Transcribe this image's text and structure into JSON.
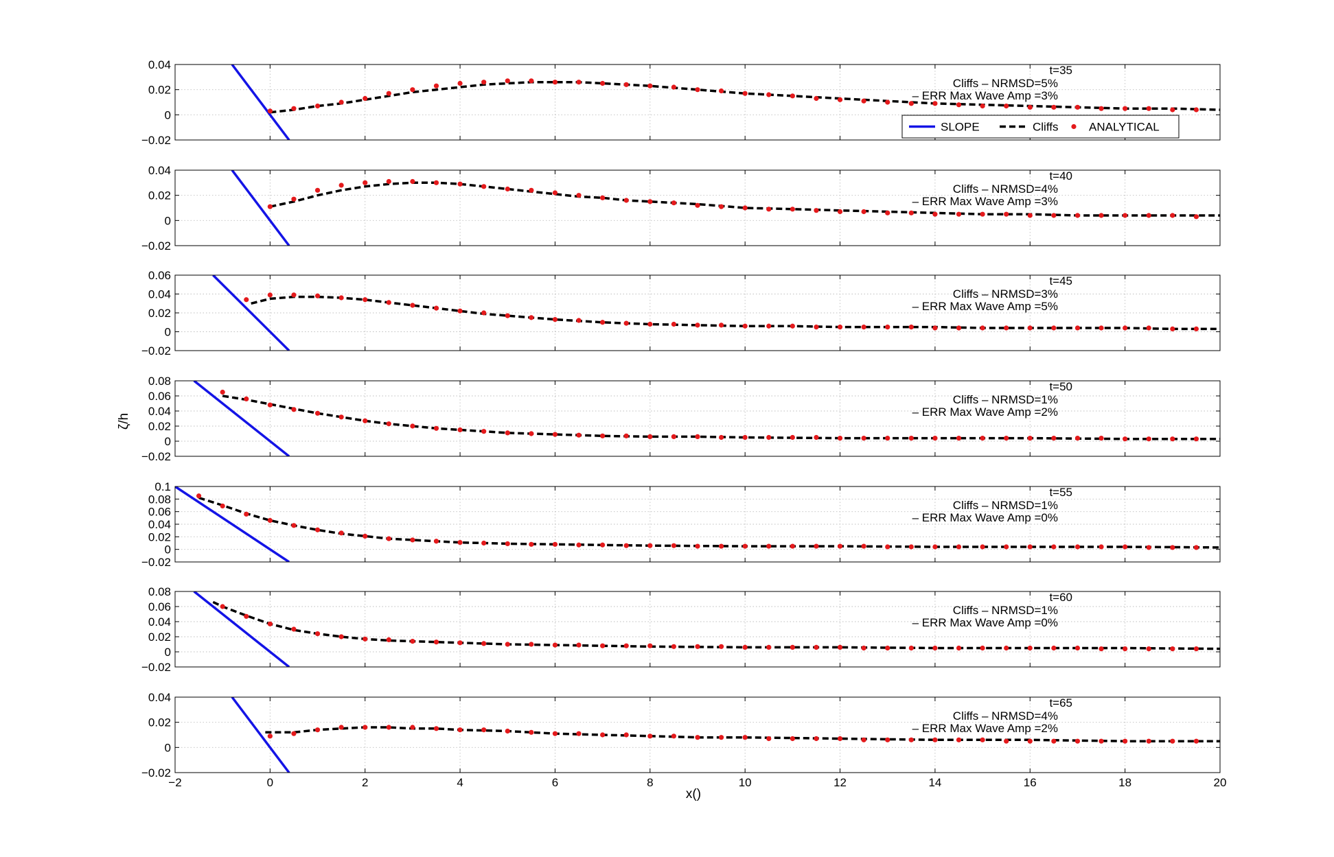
{
  "chart_data": {
    "type": "line",
    "ylabel": "ζ/h",
    "xlabel": "x()",
    "xlim": [
      -2,
      20
    ],
    "xticks": [
      -2,
      0,
      2,
      4,
      6,
      8,
      10,
      12,
      14,
      16,
      18,
      20
    ],
    "grid": true,
    "legend": {
      "placement": "bottom-right of first panel",
      "entries": [
        "SLOPE",
        "Cliffs",
        "ANALYTICAL"
      ]
    },
    "series_styles": {
      "SLOPE": "#1414e6",
      "Cliffs": "#000000",
      "ANALYTICAL": "#e41a1c"
    },
    "panels": [
      {
        "time_label": "t=35",
        "nrmsd_label": "Cliffs – NRMSD=5%",
        "err_label": "– ERR Max Wave Amp =3%",
        "ylim": [
          -0.02,
          0.04
        ],
        "yticks": [
          -0.02,
          0,
          0.02,
          0.04
        ],
        "ytick_labels": [
          "−0.02",
          "0",
          "0.02",
          "0.04"
        ],
        "slope": [
          [
            -0.8,
            0.04
          ],
          [
            0.4,
            -0.02
          ]
        ],
        "cliffs_x": [
          0,
          0.5,
          1,
          1.5,
          2,
          2.5,
          3,
          3.5,
          4,
          4.5,
          5,
          5.5,
          6,
          6.5,
          7,
          7.5,
          8,
          9,
          10,
          11,
          12,
          13,
          14,
          15,
          16,
          17,
          18,
          19,
          20
        ],
        "cliffs_y": [
          0.002,
          0.004,
          0.007,
          0.009,
          0.012,
          0.015,
          0.018,
          0.02,
          0.022,
          0.024,
          0.025,
          0.026,
          0.026,
          0.026,
          0.025,
          0.024,
          0.023,
          0.02,
          0.017,
          0.015,
          0.013,
          0.011,
          0.009,
          0.008,
          0.007,
          0.006,
          0.005,
          0.005,
          0.004
        ],
        "analytical_x": [
          0,
          0.5,
          1,
          1.5,
          2,
          2.5,
          3,
          3.5,
          4,
          4.5,
          5,
          5.5,
          6,
          6.5,
          7,
          7.5,
          8,
          8.5,
          9,
          9.5,
          10,
          10.5,
          11,
          11.5,
          12,
          12.5,
          13,
          13.5,
          14,
          14.5,
          15,
          15.5,
          16,
          16.5,
          17,
          17.5,
          18,
          18.5,
          19,
          19.5
        ],
        "analytical_y": [
          0.003,
          0.005,
          0.007,
          0.01,
          0.013,
          0.017,
          0.02,
          0.023,
          0.025,
          0.026,
          0.027,
          0.027,
          0.026,
          0.026,
          0.025,
          0.024,
          0.023,
          0.022,
          0.02,
          0.019,
          0.017,
          0.016,
          0.015,
          0.013,
          0.012,
          0.011,
          0.01,
          0.009,
          0.009,
          0.008,
          0.007,
          0.007,
          0.006,
          0.006,
          0.006,
          0.005,
          0.005,
          0.005,
          0.004,
          0.004
        ]
      },
      {
        "time_label": "t=40",
        "nrmsd_label": "Cliffs – NRMSD=4%",
        "err_label": "– ERR Max Wave Amp =3%",
        "ylim": [
          -0.02,
          0.04
        ],
        "yticks": [
          -0.02,
          0,
          0.02,
          0.04
        ],
        "ytick_labels": [
          "−0.02",
          "0",
          "0.02",
          "0.04"
        ],
        "slope": [
          [
            -0.8,
            0.04
          ],
          [
            0.4,
            -0.02
          ]
        ],
        "cliffs_x": [
          0,
          0.5,
          1,
          1.5,
          2,
          2.5,
          3,
          3.5,
          4,
          4.5,
          5,
          5.5,
          6,
          6.5,
          7,
          7.5,
          8,
          9,
          10,
          11,
          12,
          13,
          14,
          15,
          16,
          17,
          18,
          19,
          20
        ],
        "cliffs_y": [
          0.011,
          0.015,
          0.02,
          0.024,
          0.027,
          0.029,
          0.03,
          0.03,
          0.029,
          0.027,
          0.025,
          0.023,
          0.021,
          0.019,
          0.018,
          0.016,
          0.015,
          0.013,
          0.01,
          0.009,
          0.008,
          0.007,
          0.006,
          0.005,
          0.005,
          0.004,
          0.004,
          0.004,
          0.004
        ],
        "analytical_x": [
          0,
          0.5,
          1,
          1.5,
          2,
          2.5,
          3,
          3.5,
          4,
          4.5,
          5,
          5.5,
          6,
          6.5,
          7,
          7.5,
          8,
          8.5,
          9,
          9.5,
          10,
          10.5,
          11,
          11.5,
          12,
          12.5,
          13,
          13.5,
          14,
          14.5,
          15,
          15.5,
          16,
          16.5,
          17,
          17.5,
          18,
          18.5,
          19,
          19.5
        ],
        "analytical_y": [
          0.011,
          0.017,
          0.024,
          0.028,
          0.03,
          0.031,
          0.031,
          0.03,
          0.029,
          0.027,
          0.025,
          0.024,
          0.022,
          0.02,
          0.018,
          0.016,
          0.015,
          0.014,
          0.012,
          0.011,
          0.01,
          0.009,
          0.009,
          0.008,
          0.007,
          0.007,
          0.006,
          0.006,
          0.005,
          0.005,
          0.005,
          0.005,
          0.004,
          0.004,
          0.004,
          0.004,
          0.004,
          0.004,
          0.004,
          0.003
        ]
      },
      {
        "time_label": "t=45",
        "nrmsd_label": "Cliffs – NRMSD=3%",
        "err_label": "– ERR Max Wave Amp =5%",
        "ylim": [
          -0.02,
          0.06
        ],
        "yticks": [
          -0.02,
          0,
          0.02,
          0.04,
          0.06
        ],
        "ytick_labels": [
          "−0.02",
          "0",
          "0.02",
          "0.04",
          "0.06"
        ],
        "slope": [
          [
            -1.2,
            0.06
          ],
          [
            0.4,
            -0.02
          ]
        ],
        "cliffs_x": [
          -0.4,
          0,
          0.5,
          1,
          1.5,
          2,
          2.5,
          3,
          3.5,
          4,
          4.5,
          5,
          6,
          7,
          8,
          9,
          10,
          11,
          12,
          13,
          14,
          15,
          16,
          17,
          18,
          19,
          20
        ],
        "cliffs_y": [
          0.03,
          0.035,
          0.037,
          0.037,
          0.036,
          0.034,
          0.031,
          0.028,
          0.025,
          0.022,
          0.019,
          0.017,
          0.013,
          0.01,
          0.008,
          0.007,
          0.006,
          0.006,
          0.005,
          0.005,
          0.005,
          0.004,
          0.004,
          0.004,
          0.004,
          0.003,
          0.003
        ],
        "analytical_x": [
          -0.5,
          0,
          0.5,
          1,
          1.5,
          2,
          2.5,
          3,
          3.5,
          4,
          4.5,
          5,
          5.5,
          6,
          6.5,
          7,
          7.5,
          8,
          8.5,
          9,
          9.5,
          10,
          10.5,
          11,
          11.5,
          12,
          12.5,
          13,
          13.5,
          14,
          14.5,
          15,
          15.5,
          16,
          16.5,
          17,
          17.5,
          18,
          18.5,
          19,
          19.5
        ],
        "analytical_y": [
          0.034,
          0.039,
          0.039,
          0.038,
          0.036,
          0.034,
          0.031,
          0.028,
          0.025,
          0.022,
          0.02,
          0.017,
          0.015,
          0.013,
          0.012,
          0.01,
          0.009,
          0.008,
          0.008,
          0.007,
          0.007,
          0.006,
          0.006,
          0.006,
          0.005,
          0.005,
          0.005,
          0.005,
          0.005,
          0.004,
          0.004,
          0.004,
          0.004,
          0.004,
          0.004,
          0.004,
          0.004,
          0.004,
          0.004,
          0.003,
          0.003
        ]
      },
      {
        "time_label": "t=50",
        "nrmsd_label": "Cliffs – NRMSD=1%",
        "err_label": "– ERR Max Wave Amp =2%",
        "ylim": [
          -0.02,
          0.08
        ],
        "yticks": [
          -0.02,
          0,
          0.02,
          0.04,
          0.06,
          0.08
        ],
        "ytick_labels": [
          "−0.02",
          "0",
          "0.02",
          "0.04",
          "0.06",
          "0.08"
        ],
        "slope": [
          [
            -1.6,
            0.08
          ],
          [
            0.4,
            -0.02
          ]
        ],
        "cliffs_x": [
          -1,
          -0.5,
          0,
          0.5,
          1,
          1.5,
          2,
          2.5,
          3,
          3.5,
          4,
          5,
          6,
          7,
          8,
          9,
          10,
          12,
          14,
          16,
          18,
          20
        ],
        "cliffs_y": [
          0.06,
          0.055,
          0.049,
          0.043,
          0.037,
          0.032,
          0.027,
          0.023,
          0.02,
          0.017,
          0.015,
          0.011,
          0.009,
          0.007,
          0.006,
          0.006,
          0.005,
          0.004,
          0.004,
          0.004,
          0.003,
          0.003
        ],
        "analytical_x": [
          -1,
          -0.5,
          0,
          0.5,
          1,
          1.5,
          2,
          2.5,
          3,
          3.5,
          4,
          4.5,
          5,
          5.5,
          6,
          6.5,
          7,
          7.5,
          8,
          8.5,
          9,
          9.5,
          10,
          10.5,
          11,
          11.5,
          12,
          12.5,
          13,
          13.5,
          14,
          14.5,
          15,
          15.5,
          16,
          16.5,
          17,
          17.5,
          18,
          18.5,
          19,
          19.5
        ],
        "analytical_y": [
          0.065,
          0.056,
          0.048,
          0.042,
          0.037,
          0.032,
          0.027,
          0.023,
          0.02,
          0.017,
          0.015,
          0.013,
          0.011,
          0.01,
          0.009,
          0.008,
          0.007,
          0.007,
          0.006,
          0.006,
          0.006,
          0.005,
          0.005,
          0.005,
          0.005,
          0.005,
          0.004,
          0.004,
          0.004,
          0.004,
          0.004,
          0.004,
          0.004,
          0.004,
          0.004,
          0.004,
          0.004,
          0.004,
          0.003,
          0.003,
          0.003,
          0.003
        ]
      },
      {
        "time_label": "t=55",
        "nrmsd_label": "Cliffs – NRMSD=1%",
        "err_label": "– ERR Max Wave Amp =0%",
        "ylim": [
          -0.02,
          0.1
        ],
        "yticks": [
          -0.02,
          0,
          0.02,
          0.04,
          0.06,
          0.08,
          0.1
        ],
        "ytick_labels": [
          "−0.02",
          "0",
          "0.02",
          "0.04",
          "0.06",
          "0.08",
          "0.1"
        ],
        "slope": [
          [
            -2,
            0.1
          ],
          [
            0.4,
            -0.02
          ]
        ],
        "cliffs_x": [
          -1.5,
          -1,
          -0.5,
          0,
          0.5,
          1,
          1.5,
          2,
          2.5,
          3,
          3.5,
          4,
          5,
          6,
          7,
          8,
          10,
          12,
          14,
          16,
          18,
          20
        ],
        "cliffs_y": [
          0.082,
          0.07,
          0.057,
          0.046,
          0.038,
          0.031,
          0.025,
          0.021,
          0.017,
          0.015,
          0.013,
          0.011,
          0.009,
          0.008,
          0.007,
          0.006,
          0.005,
          0.005,
          0.004,
          0.004,
          0.004,
          0.003
        ],
        "analytical_x": [
          -1.5,
          -1,
          -0.5,
          0,
          0.5,
          1,
          1.5,
          2,
          2.5,
          3,
          3.5,
          4,
          4.5,
          5,
          5.5,
          6,
          6.5,
          7,
          7.5,
          8,
          8.5,
          9,
          9.5,
          10,
          10.5,
          11,
          11.5,
          12,
          12.5,
          13,
          13.5,
          14,
          14.5,
          15,
          15.5,
          16,
          16.5,
          17,
          17.5,
          18,
          18.5,
          19,
          19.5
        ],
        "analytical_y": [
          0.085,
          0.069,
          0.056,
          0.046,
          0.038,
          0.031,
          0.026,
          0.021,
          0.017,
          0.015,
          0.013,
          0.011,
          0.01,
          0.009,
          0.008,
          0.008,
          0.007,
          0.007,
          0.006,
          0.006,
          0.006,
          0.005,
          0.005,
          0.005,
          0.005,
          0.005,
          0.005,
          0.005,
          0.005,
          0.004,
          0.004,
          0.004,
          0.004,
          0.004,
          0.004,
          0.004,
          0.004,
          0.004,
          0.004,
          0.004,
          0.003,
          0.003,
          0.003
        ]
      },
      {
        "time_label": "t=60",
        "nrmsd_label": "Cliffs – NRMSD=1%",
        "err_label": "– ERR Max Wave Amp =0%",
        "ylim": [
          -0.02,
          0.08
        ],
        "yticks": [
          -0.02,
          0,
          0.02,
          0.04,
          0.06,
          0.08
        ],
        "ytick_labels": [
          "−0.02",
          "0",
          "0.02",
          "0.04",
          "0.06",
          "0.08"
        ],
        "slope": [
          [
            -1.6,
            0.08
          ],
          [
            0.4,
            -0.02
          ]
        ],
        "cliffs_x": [
          -1.2,
          -1,
          -0.5,
          0,
          0.5,
          1,
          1.5,
          2,
          2.5,
          3,
          3.5,
          4,
          5,
          6,
          7,
          8,
          10,
          12,
          14,
          16,
          18,
          20
        ],
        "cliffs_y": [
          0.066,
          0.06,
          0.048,
          0.037,
          0.029,
          0.024,
          0.02,
          0.017,
          0.015,
          0.014,
          0.013,
          0.012,
          0.01,
          0.009,
          0.008,
          0.007,
          0.006,
          0.006,
          0.005,
          0.005,
          0.005,
          0.004
        ],
        "analytical_x": [
          -1,
          -0.5,
          0,
          0.5,
          1,
          1.5,
          2,
          2.5,
          3,
          3.5,
          4,
          4.5,
          5,
          5.5,
          6,
          6.5,
          7,
          7.5,
          8,
          8.5,
          9,
          9.5,
          10,
          10.5,
          11,
          11.5,
          12,
          12.5,
          13,
          13.5,
          14,
          14.5,
          15,
          15.5,
          16,
          16.5,
          17,
          17.5,
          18,
          18.5,
          19,
          19.5
        ],
        "analytical_y": [
          0.06,
          0.047,
          0.037,
          0.03,
          0.024,
          0.02,
          0.017,
          0.016,
          0.014,
          0.013,
          0.012,
          0.011,
          0.01,
          0.01,
          0.009,
          0.009,
          0.008,
          0.008,
          0.008,
          0.007,
          0.007,
          0.007,
          0.006,
          0.006,
          0.006,
          0.006,
          0.006,
          0.005,
          0.005,
          0.005,
          0.005,
          0.005,
          0.005,
          0.005,
          0.005,
          0.005,
          0.005,
          0.004,
          0.004,
          0.004,
          0.004,
          0.004
        ]
      },
      {
        "time_label": "t=65",
        "nrmsd_label": "Cliffs – NRMSD=4%",
        "err_label": "– ERR Max Wave Amp =2%",
        "ylim": [
          -0.02,
          0.04
        ],
        "yticks": [
          -0.02,
          0,
          0.02,
          0.04
        ],
        "ytick_labels": [
          "−0.02",
          "0",
          "0.02",
          "0.04"
        ],
        "slope": [
          [
            -0.8,
            0.04
          ],
          [
            0.4,
            -0.02
          ]
        ],
        "cliffs_x": [
          -0.1,
          0.5,
          1,
          1.5,
          2,
          2.5,
          3,
          3.5,
          4,
          5,
          6,
          7,
          8,
          9,
          10,
          12,
          14,
          16,
          18,
          20
        ],
        "cliffs_y": [
          0.012,
          0.012,
          0.014,
          0.015,
          0.016,
          0.016,
          0.015,
          0.015,
          0.014,
          0.013,
          0.011,
          0.01,
          0.009,
          0.008,
          0.008,
          0.007,
          0.006,
          0.006,
          0.005,
          0.005
        ],
        "analytical_x": [
          0,
          0.5,
          1,
          1.5,
          2,
          2.5,
          3,
          3.5,
          4,
          4.5,
          5,
          5.5,
          6,
          6.5,
          7,
          7.5,
          8,
          8.5,
          9,
          9.5,
          10,
          10.5,
          11,
          11.5,
          12,
          12.5,
          13,
          13.5,
          14,
          14.5,
          15,
          15.5,
          16,
          16.5,
          17,
          17.5,
          18,
          18.5,
          19,
          19.5
        ],
        "analytical_y": [
          0.009,
          0.011,
          0.014,
          0.016,
          0.016,
          0.016,
          0.016,
          0.015,
          0.014,
          0.014,
          0.013,
          0.012,
          0.011,
          0.011,
          0.01,
          0.01,
          0.009,
          0.009,
          0.008,
          0.008,
          0.008,
          0.007,
          0.007,
          0.007,
          0.007,
          0.006,
          0.006,
          0.006,
          0.006,
          0.006,
          0.006,
          0.005,
          0.005,
          0.005,
          0.005,
          0.005,
          0.005,
          0.005,
          0.005,
          0.005
        ]
      }
    ]
  }
}
